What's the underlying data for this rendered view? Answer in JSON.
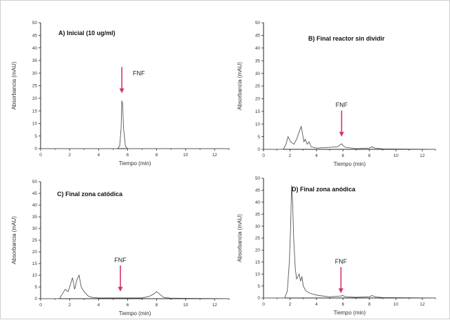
{
  "chart_data": [
    {
      "type": "line",
      "title": "A) Inicial (10 ug/ml)",
      "xlabel": "Tiempo (min)",
      "ylabel": "Absorbancia (mAU)",
      "xlim": [
        0,
        13
      ],
      "ylim": [
        0,
        50
      ],
      "xticks": [
        0,
        2,
        4,
        6,
        8,
        10,
        12
      ],
      "yticks": [
        0,
        5,
        10,
        15,
        20,
        25,
        30,
        35,
        40,
        45,
        50
      ],
      "annotation": {
        "text": "FNF",
        "x": 5.6,
        "y_tip": 22
      },
      "series": [
        {
          "x": [
            0,
            5.3,
            5.45,
            5.55,
            5.6,
            5.65,
            5.72,
            5.85,
            6.0,
            13
          ],
          "y": [
            0,
            0,
            1,
            8,
            19,
            18,
            8,
            1,
            0,
            0
          ]
        }
      ]
    },
    {
      "type": "line",
      "title": "B) Final reactor sin dividir",
      "xlabel": "Tiempo (min)",
      "ylabel": "Absorbancia (mAU)",
      "xlim": [
        0,
        13
      ],
      "ylim": [
        0,
        50
      ],
      "xticks": [
        0,
        2,
        4,
        6,
        8,
        10,
        12
      ],
      "yticks": [
        0,
        5,
        10,
        15,
        20,
        25,
        30,
        35,
        40,
        45,
        50
      ],
      "annotation": {
        "text": "FNF",
        "x": 5.9,
        "y_tip": 5
      },
      "series": [
        {
          "x": [
            0,
            1.5,
            1.7,
            1.85,
            2.05,
            2.3,
            2.5,
            2.7,
            2.85,
            2.95,
            3.05,
            3.15,
            3.3,
            3.45,
            3.6,
            4.0,
            5.0,
            5.6,
            5.8,
            5.9,
            6.0,
            6.2,
            7.0,
            8.0,
            8.2,
            8.4,
            9.0,
            13
          ],
          "y": [
            0,
            0,
            2,
            5,
            3,
            2,
            4,
            7,
            9,
            6,
            3,
            4,
            2,
            3,
            1,
            0.5,
            0.8,
            1,
            1.8,
            2.2,
            1.5,
            0.8,
            0.3,
            0.5,
            1,
            0.5,
            0.2,
            0
          ]
        }
      ]
    },
    {
      "type": "line",
      "title": "C) Final zona catódica",
      "xlabel": "Tiempo (min)",
      "ylabel": "Absorbancia (mAU)",
      "xlim": [
        0,
        13
      ],
      "ylim": [
        0,
        50
      ],
      "xticks": [
        0,
        2,
        4,
        6,
        8,
        10,
        12
      ],
      "yticks": [
        0,
        5,
        10,
        15,
        20,
        25,
        30,
        35,
        40,
        45,
        50
      ],
      "annotation": {
        "text": "FNF",
        "x": 5.5,
        "y_tip": 3
      },
      "series": [
        {
          "x": [
            0,
            1.3,
            1.5,
            1.7,
            1.9,
            2.1,
            2.2,
            2.35,
            2.5,
            2.65,
            2.8,
            3.0,
            3.3,
            3.6,
            4.0,
            5.0,
            6.0,
            7.0,
            7.5,
            7.8,
            8.0,
            8.2,
            8.5,
            9.0,
            13
          ],
          "y": [
            0,
            0,
            2,
            4,
            3,
            7,
            9,
            4,
            8,
            10,
            5,
            3,
            1,
            0.5,
            0.3,
            0.3,
            0.3,
            0.3,
            1,
            2,
            3,
            2,
            0.5,
            0.2,
            0
          ]
        }
      ]
    },
    {
      "type": "line",
      "title": "D) Final zona anódica",
      "xlabel": "Tiempo (min)",
      "ylabel": "Absorbancia (mAU)",
      "xlim": [
        0,
        13
      ],
      "ylim": [
        0,
        50
      ],
      "xticks": [
        0,
        2,
        4,
        6,
        8,
        10,
        12
      ],
      "yticks": [
        0,
        5,
        10,
        15,
        20,
        25,
        30,
        35,
        40,
        45,
        50
      ],
      "annotation": {
        "text": "FNF",
        "x": 5.85,
        "y_tip": 2
      },
      "series": [
        {
          "x": [
            0,
            1.6,
            1.8,
            1.95,
            2.05,
            2.12,
            2.2,
            2.28,
            2.4,
            2.5,
            2.6,
            2.7,
            2.8,
            2.9,
            3.0,
            3.2,
            3.5,
            3.8,
            4.2,
            5.0,
            5.8,
            6.0,
            6.2,
            7.0,
            8.0,
            8.2,
            8.5,
            9.0,
            13
          ],
          "y": [
            0,
            0,
            3,
            15,
            30,
            47,
            40,
            25,
            12,
            8,
            9,
            10,
            7,
            9,
            5,
            3,
            2,
            1.5,
            1,
            0.5,
            0.8,
            1,
            0.5,
            0.3,
            0.5,
            1,
            0.4,
            0.2,
            0
          ]
        }
      ]
    }
  ]
}
